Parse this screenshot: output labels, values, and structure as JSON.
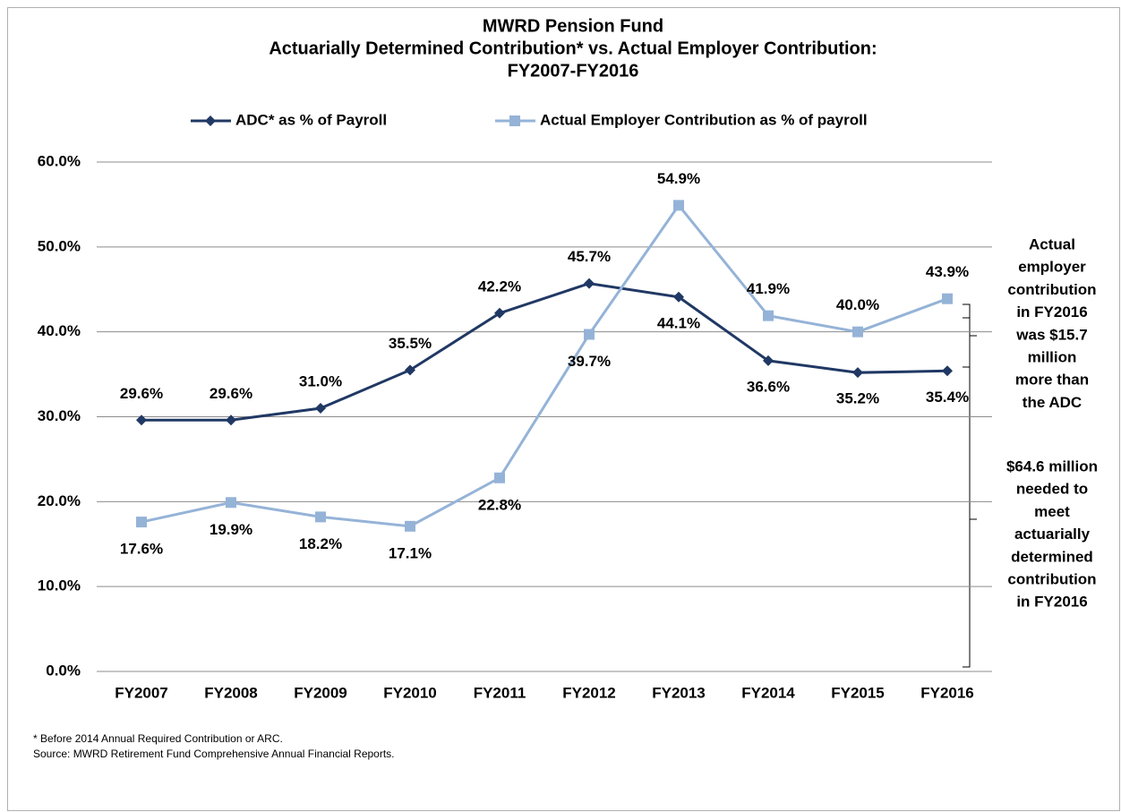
{
  "chart_data": {
    "type": "line",
    "title": [
      "MWRD Pension Fund",
      "Actuarially Determined Contribution* vs. Actual Employer Contribution:",
      "FY2007-FY2016"
    ],
    "categories": [
      "FY2007",
      "FY2008",
      "FY2009",
      "FY2010",
      "FY2011",
      "FY2012",
      "FY2013",
      "FY2014",
      "FY2015",
      "FY2016"
    ],
    "series": [
      {
        "name": "ADC* as % of Payroll",
        "color": "#203864",
        "marker": "diamond",
        "values": [
          29.6,
          29.6,
          31.0,
          35.5,
          42.2,
          45.7,
          44.1,
          36.6,
          35.2,
          35.4
        ],
        "value_labels": [
          "29.6%",
          "29.6%",
          "31.0%",
          "35.5%",
          "42.2%",
          "45.7%",
          "44.1%",
          "36.6%",
          "35.2%",
          "35.4%"
        ]
      },
      {
        "name": "Actual Employer Contribution as % of payroll",
        "color": "#95b3d7",
        "marker": "square",
        "values": [
          17.6,
          19.9,
          18.2,
          17.1,
          22.8,
          39.7,
          54.9,
          41.9,
          40.0,
          43.9
        ],
        "value_labels": [
          "17.6%",
          "19.9%",
          "18.2%",
          "17.1%",
          "22.8%",
          "39.7%",
          "54.9%",
          "41.9%",
          "40.0%",
          "43.9%"
        ]
      }
    ],
    "ylim": [
      0,
      60
    ],
    "yticks": [
      {
        "value": 0,
        "label": "0.0%"
      },
      {
        "value": 10,
        "label": "10.0%"
      },
      {
        "value": 20,
        "label": "20.0%"
      },
      {
        "value": 30,
        "label": "30.0%"
      },
      {
        "value": 40,
        "label": "40.0%"
      },
      {
        "value": 50,
        "label": "50.0%"
      },
      {
        "value": 60,
        "label": "60.0%"
      }
    ],
    "grid": true,
    "legend": "top",
    "annotations": [
      [
        "Actual",
        "employer",
        "contribution",
        "in FY2016",
        "was $15.7",
        "million",
        "more than",
        "the ADC"
      ],
      [
        "$64.6 million",
        "needed to",
        "meet",
        "actuarially",
        "determined",
        "contribution",
        "in FY2016"
      ]
    ],
    "footnotes": [
      "* Before 2014 Annual Required Contribution or ARC.",
      "Source: MWRD Retirement Fund Comprehensive Annual Financial Reports."
    ]
  }
}
